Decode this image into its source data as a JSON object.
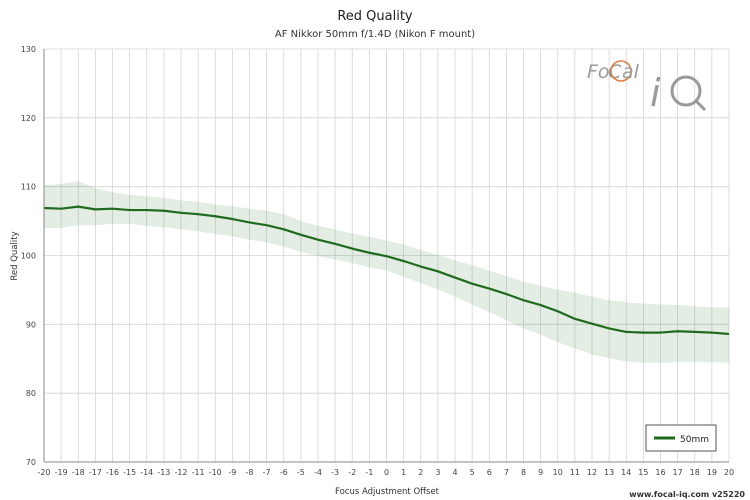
{
  "chart_data": {
    "type": "line",
    "title": "Red Quality",
    "subtitle": "AF Nikkor 50mm f/1.4D (Nikon F mount)",
    "xlabel": "Focus Adjustment Offset",
    "ylabel": "Red Quality",
    "xlim": [
      -20,
      20
    ],
    "ylim": [
      70,
      130
    ],
    "yticks": [
      70,
      80,
      90,
      100,
      110,
      120,
      130
    ],
    "grid": true,
    "legend_position": "bottom-right",
    "x": [
      -20,
      -19,
      -18,
      -17,
      -16,
      -15,
      -14,
      -13,
      -12,
      -11,
      -10,
      -9,
      -8,
      -7,
      -6,
      -5,
      -4,
      -3,
      -2,
      -1,
      0,
      1,
      2,
      3,
      4,
      5,
      6,
      7,
      8,
      9,
      10,
      11,
      12,
      13,
      14,
      15,
      16,
      17,
      18,
      19,
      20
    ],
    "series": [
      {
        "name": "50mm",
        "color": "#1e6b1e",
        "values": [
          106.9,
          106.8,
          107.1,
          106.7,
          106.8,
          106.6,
          106.6,
          106.5,
          106.2,
          106.0,
          105.7,
          105.3,
          104.8,
          104.4,
          103.8,
          103.0,
          102.3,
          101.7,
          101.0,
          100.4,
          99.9,
          99.2,
          98.4,
          97.7,
          96.8,
          95.9,
          95.2,
          94.4,
          93.5,
          92.8,
          91.9,
          90.8,
          90.1,
          89.4,
          88.9,
          88.8,
          88.8,
          89.0,
          88.9,
          88.8,
          88.6
        ],
        "band_upper": [
          110.2,
          110.4,
          110.8,
          109.8,
          109.2,
          108.8,
          108.6,
          108.4,
          108.0,
          107.8,
          107.4,
          107.2,
          106.8,
          106.5,
          106.0,
          105.0,
          104.3,
          103.8,
          103.2,
          102.7,
          102.2,
          101.6,
          100.8,
          100.1,
          99.3,
          98.6,
          97.8,
          97.0,
          96.2,
          95.6,
          95.0,
          94.6,
          94.0,
          93.5,
          93.2,
          93.0,
          92.9,
          92.8,
          92.6,
          92.5,
          92.4
        ],
        "band_lower": [
          104.0,
          104.0,
          104.4,
          104.4,
          104.6,
          104.6,
          104.3,
          104.1,
          103.8,
          103.5,
          103.1,
          102.8,
          102.3,
          101.9,
          101.3,
          100.5,
          99.9,
          99.4,
          98.9,
          98.3,
          97.8,
          96.9,
          96.0,
          95.1,
          94.0,
          92.9,
          91.8,
          90.6,
          89.4,
          88.5,
          87.4,
          86.5,
          85.6,
          85.1,
          84.6,
          84.4,
          84.4,
          84.5,
          84.5,
          84.5,
          84.4
        ]
      }
    ]
  },
  "logo": {
    "text": "FoCal iQ",
    "colors": {
      "accent": "#e07b39",
      "gray": "#9a9a9a"
    }
  },
  "footer": {
    "text": "www.focal-iq.com  v25220"
  }
}
